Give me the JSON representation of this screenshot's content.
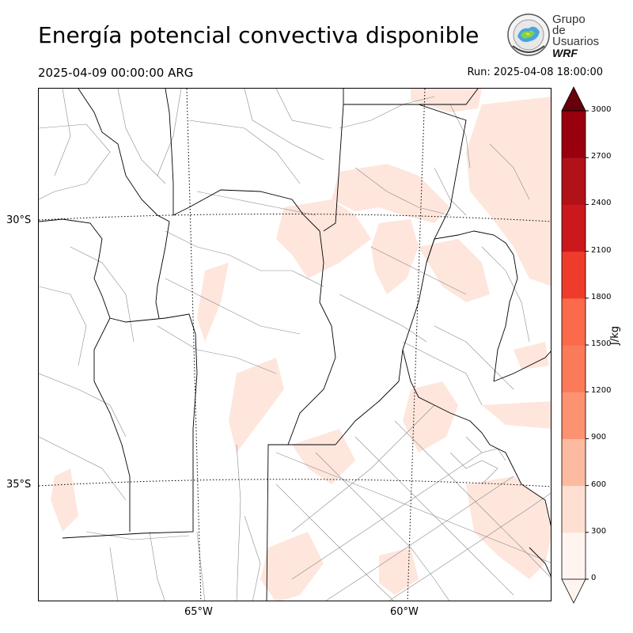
{
  "header": {
    "title": "Energía potencial convectiva disponible",
    "valid_time": "2025-04-09 00:00:00 ARG",
    "run_time": "Run: 2025-04-08 18:00:00"
  },
  "logo": {
    "line1": "Grupo de",
    "line2": "Usuarios",
    "line3": "WRF"
  },
  "map": {
    "lat_labels": [
      "30°S",
      "35°S"
    ],
    "lon_labels": [
      "65°W",
      "60°W"
    ],
    "gridlines": "dotted",
    "field_colors": {
      "low": "#fee6dc",
      "border": "#000000",
      "admin": "#888888"
    }
  },
  "colorbar": {
    "unit": "J/kg",
    "ticks": [
      "0",
      "300",
      "600",
      "900",
      "1200",
      "1500",
      "1800",
      "2100",
      "2400",
      "2700",
      "3000"
    ],
    "colors": [
      "#fff5f0",
      "#fee0d2",
      "#fcbba1",
      "#fc9272",
      "#fb7a5a",
      "#fb6a4a",
      "#ef3b2c",
      "#cb181d",
      "#b01217",
      "#99000d",
      "#7a0a0f"
    ],
    "extend": "both",
    "over_color": "#67000d"
  }
}
